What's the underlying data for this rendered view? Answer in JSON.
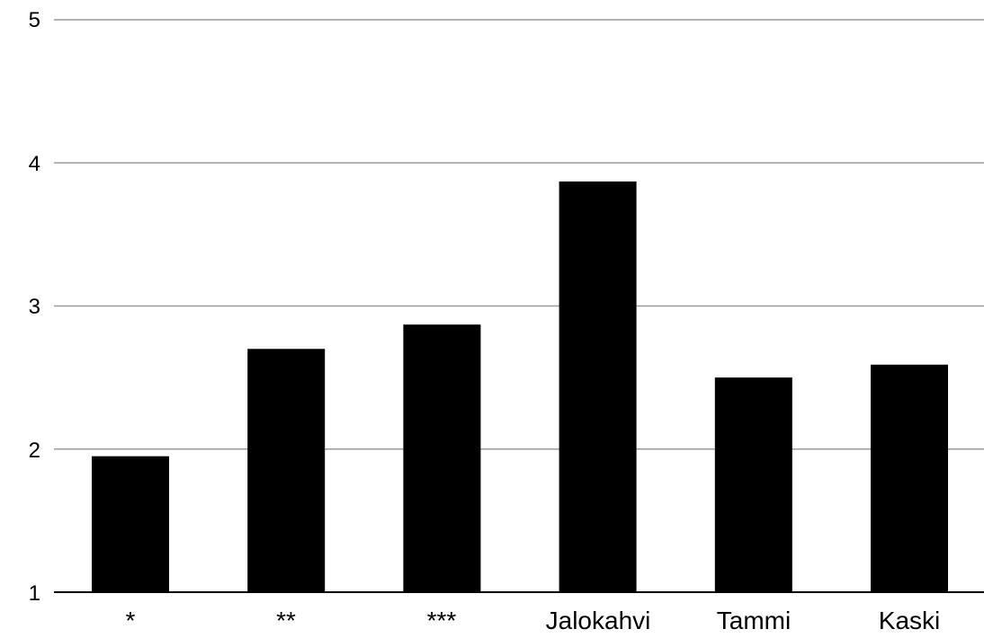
{
  "chart_data": {
    "type": "bar",
    "categories": [
      "*",
      "**",
      "***",
      "Jalokahvi",
      "Tammi",
      "Kaski"
    ],
    "values": [
      1.95,
      2.7,
      2.87,
      3.87,
      2.5,
      2.59
    ],
    "ylim": [
      1,
      5
    ],
    "yticks": [
      "1",
      "2",
      "3",
      "4",
      "5"
    ],
    "grid": true,
    "colors": {
      "bar": "#000000",
      "grid": "#9a9aa8",
      "axis": "#000000"
    }
  }
}
